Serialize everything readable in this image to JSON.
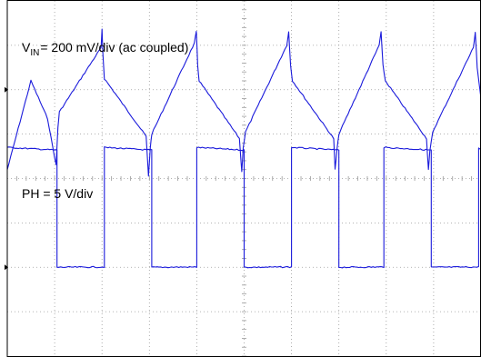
{
  "chart_data": [
    {
      "type": "line",
      "label_var": "V",
      "label_sub": "IN",
      "label_rest": "= 200 mV/div (ac coupled)",
      "coupling": "ac",
      "x_divisions": 10,
      "y_divisions": 8,
      "grid": true,
      "series": [
        {
          "waveform": "triangle",
          "period_div": 1.95,
          "peak_to_peak_div": 1.9,
          "color": "#1a1adb",
          "x_div": [
            0,
            0.5,
            0.85,
            1.03,
            1.07,
            1.1,
            1.98,
            2.0,
            2.02,
            2.05,
            2.93,
            2.98,
            3.02,
            3.05,
            3.95,
            3.99,
            4.02,
            4.05,
            4.9,
            4.95,
            4.98,
            5.03,
            5.9,
            5.94,
            5.98,
            6.02,
            6.89,
            6.92,
            6.96,
            7.0,
            7.85,
            7.89,
            7.93,
            7.98,
            8.85,
            8.89,
            8.92,
            8.98,
            9.84,
            9.88,
            9.92,
            10.0
          ],
          "y_div": [
            -1.8,
            0.2,
            -0.65,
            -1.7,
            -0.85,
            -0.5,
            0.95,
            1.35,
            0.8,
            0.25,
            -1.05,
            -1.95,
            -1.3,
            -1.0,
            1.05,
            1.3,
            0.55,
            0.2,
            -1.1,
            -1.85,
            -1.3,
            -0.95,
            1.0,
            1.3,
            0.55,
            0.2,
            -1.1,
            -1.8,
            -1.35,
            -1.0,
            1.0,
            1.3,
            0.55,
            0.2,
            -1.1,
            -1.8,
            -1.4,
            -0.95,
            0.95,
            1.3,
            0.5,
            -0.2
          ]
        }
      ]
    },
    {
      "type": "line",
      "label": "PH = 5 V/div",
      "x_divisions": 10,
      "y_divisions": 8,
      "grid": true,
      "series": [
        {
          "waveform": "square",
          "period_div": 1.95,
          "amplitude_div": 2.7,
          "color": "#1a1adb",
          "edges_div": [
            0.0,
            1.05,
            2.05,
            3.05,
            4.0,
            5.0,
            6.0,
            7.0,
            7.95,
            8.95,
            9.95
          ],
          "start_high": true
        }
      ]
    }
  ],
  "colors": {
    "trace": "#1a1adb",
    "grid": "#9a9a9a",
    "frame": "#000000"
  }
}
